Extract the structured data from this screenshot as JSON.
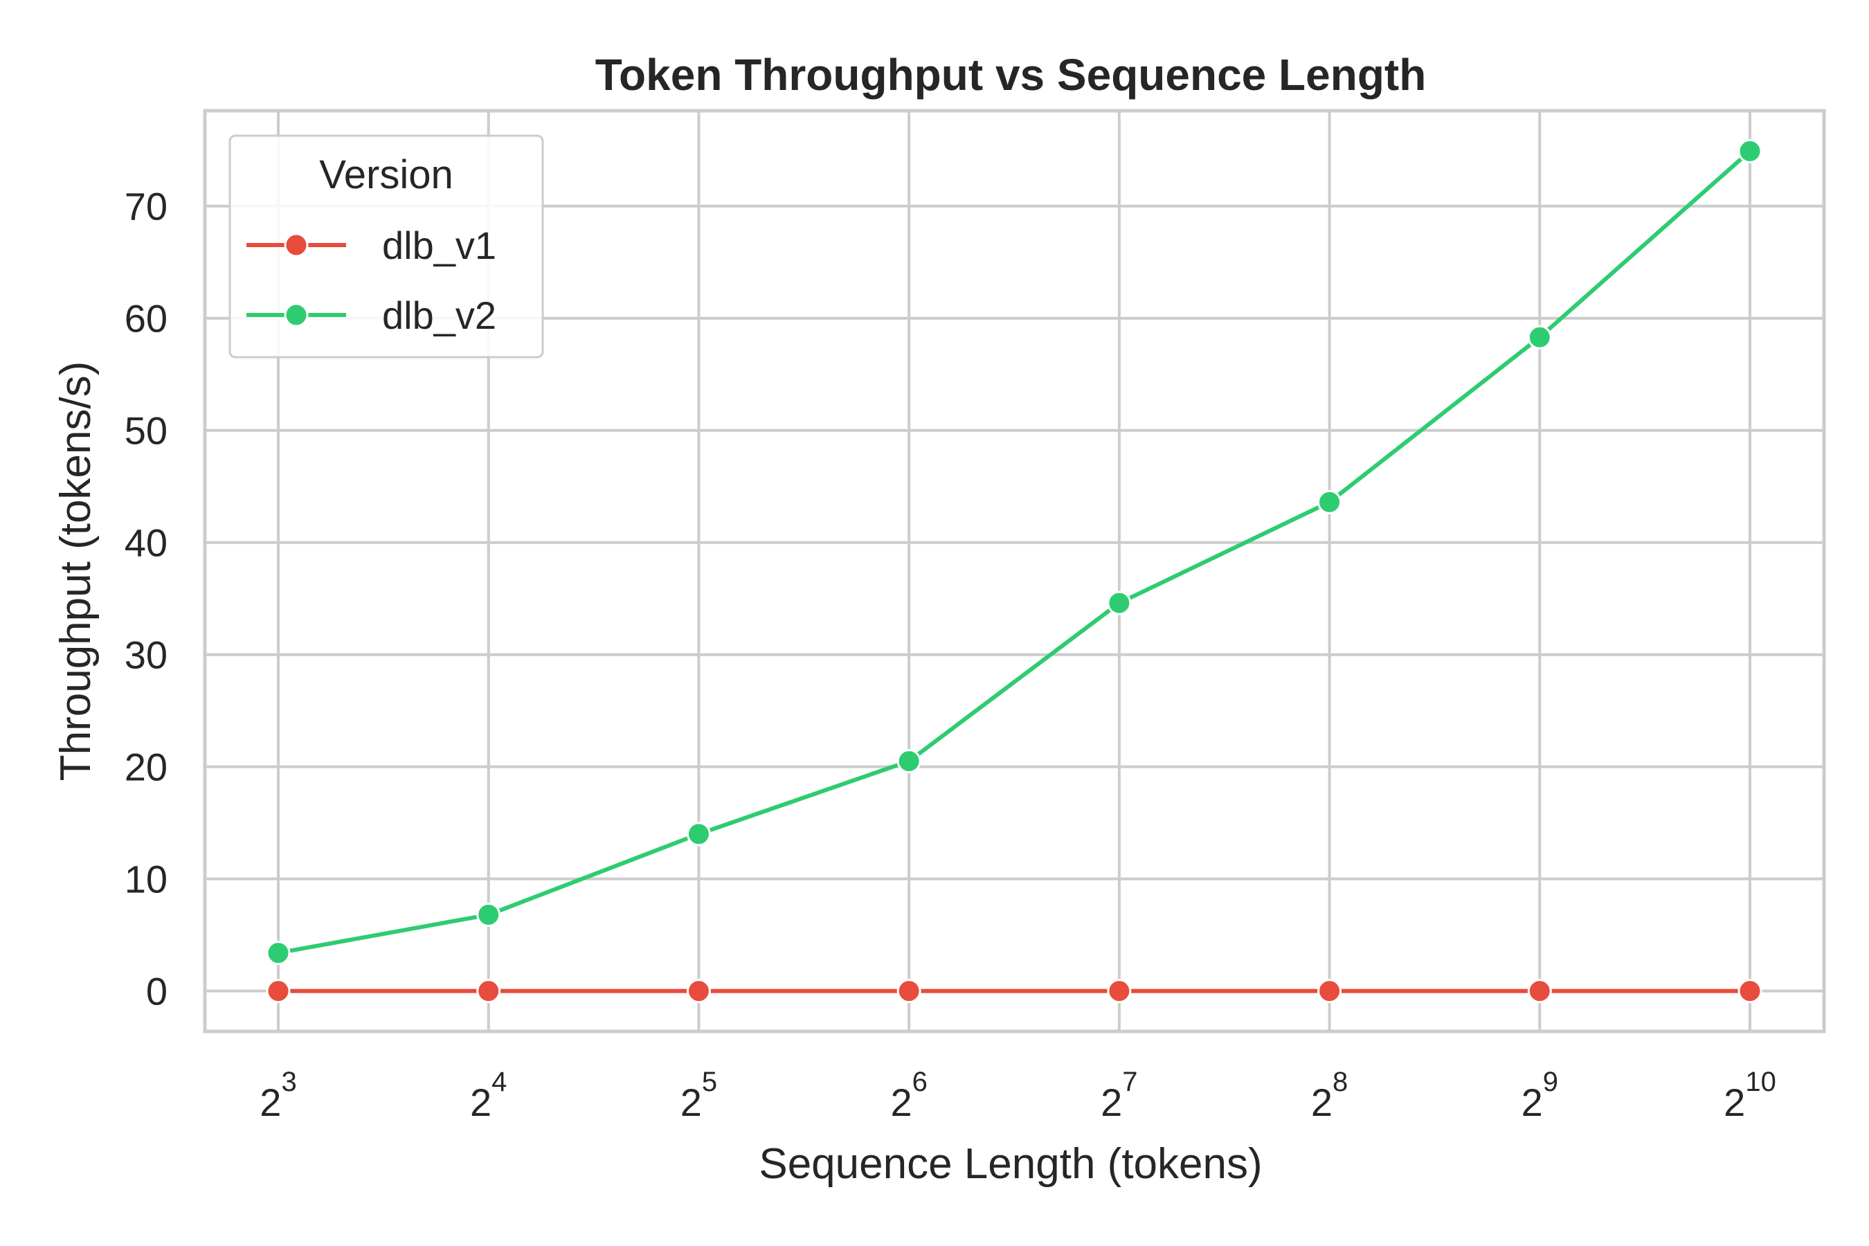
{
  "chart_data": {
    "type": "line",
    "title": "Token Throughput vs Sequence Length",
    "xlabel": "Sequence Length (tokens)",
    "ylabel": "Throughput (tokens/s)",
    "x_scale": "log2",
    "x": [
      8,
      16,
      32,
      64,
      128,
      256,
      512,
      1024
    ],
    "x_tick_labels": [
      {
        "base": "2",
        "exp": "3"
      },
      {
        "base": "2",
        "exp": "4"
      },
      {
        "base": "2",
        "exp": "5"
      },
      {
        "base": "2",
        "exp": "6"
      },
      {
        "base": "2",
        "exp": "7"
      },
      {
        "base": "2",
        "exp": "8"
      },
      {
        "base": "2",
        "exp": "9"
      },
      {
        "base": "2",
        "exp": "10"
      }
    ],
    "y_ticks": [
      "0",
      "10",
      "20",
      "30",
      "40",
      "50",
      "60",
      "70"
    ],
    "ylim": [
      -3.6,
      78.5
    ],
    "grid": true,
    "legend": {
      "title": "Version",
      "placement": "top-left"
    },
    "series": [
      {
        "name": "dlb_v1",
        "color": "#e74c3c",
        "values": [
          0,
          0,
          0,
          0,
          0,
          0,
          0,
          0
        ]
      },
      {
        "name": "dlb_v2",
        "color": "#2ecc71",
        "values": [
          3.4,
          6.8,
          14.0,
          20.5,
          34.6,
          43.6,
          58.3,
          74.9
        ]
      }
    ]
  }
}
